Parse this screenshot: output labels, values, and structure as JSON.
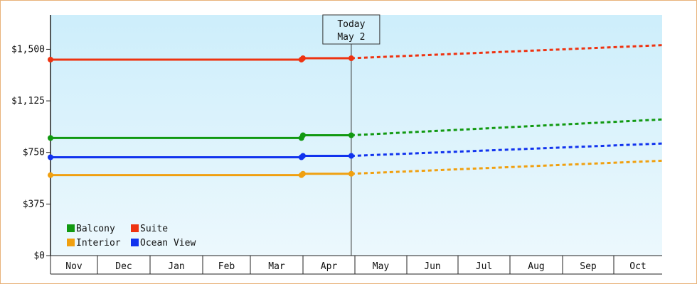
{
  "chart_data": {
    "type": "line",
    "title": "",
    "xlabel": "",
    "ylabel": "",
    "ylim": [
      0,
      1750
    ],
    "y_ticks": [
      0,
      375,
      750,
      1125,
      1500
    ],
    "y_tick_labels": [
      "$0",
      "$375",
      "$750",
      "$1,125",
      "$1,500"
    ],
    "months": [
      "Nov",
      "Dec",
      "Jan",
      "Feb",
      "Mar",
      "Apr",
      "May",
      "Jun",
      "Jul",
      "Aug",
      "Sep",
      "Oct"
    ],
    "today_marker": {
      "line1": "Today",
      "line2": "May 2",
      "x_month": 5.93
    },
    "grid": false,
    "legend_placement": "bottom-left",
    "series": [
      {
        "name": "Balcony",
        "color": "#119911",
        "actual": [
          [
            0,
            855
          ],
          [
            4.97,
            855
          ],
          [
            5.0,
            875
          ],
          [
            5.93,
            875
          ]
        ],
        "forecast": [
          [
            5.93,
            875
          ],
          [
            12.0,
            990
          ]
        ]
      },
      {
        "name": "Suite",
        "color": "#ee3311",
        "actual": [
          [
            0,
            1425
          ],
          [
            4.97,
            1425
          ],
          [
            5.0,
            1435
          ],
          [
            5.93,
            1435
          ]
        ],
        "forecast": [
          [
            5.93,
            1435
          ],
          [
            12.0,
            1530
          ]
        ]
      },
      {
        "name": "Interior",
        "color": "#f0a010",
        "actual": [
          [
            0,
            585
          ],
          [
            4.97,
            585
          ],
          [
            5.0,
            595
          ],
          [
            5.93,
            595
          ]
        ],
        "forecast": [
          [
            5.93,
            595
          ],
          [
            12.0,
            690
          ]
        ]
      },
      {
        "name": "Ocean View",
        "color": "#1133ee",
        "actual": [
          [
            0,
            715
          ],
          [
            4.97,
            715
          ],
          [
            5.0,
            725
          ],
          [
            5.93,
            725
          ]
        ],
        "forecast": [
          [
            5.93,
            725
          ],
          [
            12.0,
            815
          ]
        ]
      }
    ]
  }
}
